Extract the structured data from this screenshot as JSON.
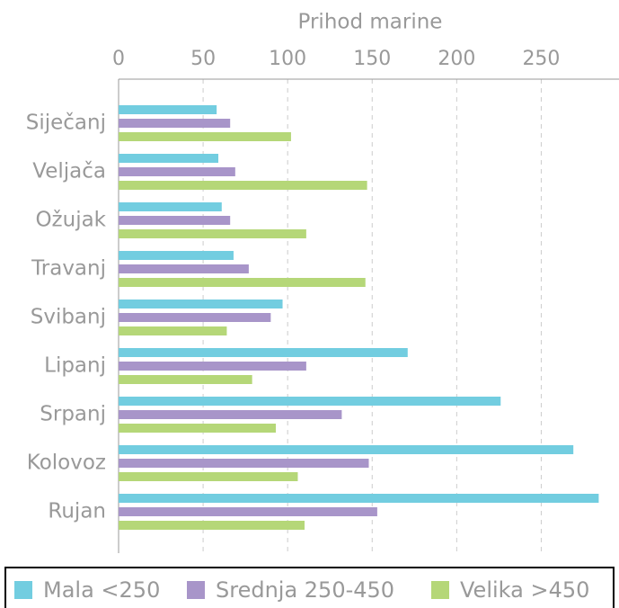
{
  "chart_data": {
    "type": "barh",
    "xlabel": "Prihod marine",
    "categories": [
      "Siječanj",
      "Veljača",
      "Ožujak",
      "Travanj",
      "Svibanj",
      "Lipanj",
      "Srpanj",
      "Kolovoz",
      "Rujan"
    ],
    "series": [
      {
        "name": "Mala <250",
        "color": "#72cde0",
        "values": [
          58,
          59,
          61,
          68,
          97,
          171,
          226,
          269,
          284
        ]
      },
      {
        "name": "Srednja 250-450",
        "color": "#a895c9",
        "values": [
          66,
          69,
          66,
          77,
          90,
          111,
          132,
          148,
          153
        ]
      },
      {
        "name": "Velika >450",
        "color": "#b5d778",
        "values": [
          102,
          147,
          111,
          146,
          64,
          79,
          93,
          106,
          110
        ]
      }
    ],
    "xlim": [
      0,
      296
    ],
    "xticks": [
      0,
      50,
      100,
      150,
      200,
      250
    ],
    "grid": true,
    "legend": "bottom"
  }
}
